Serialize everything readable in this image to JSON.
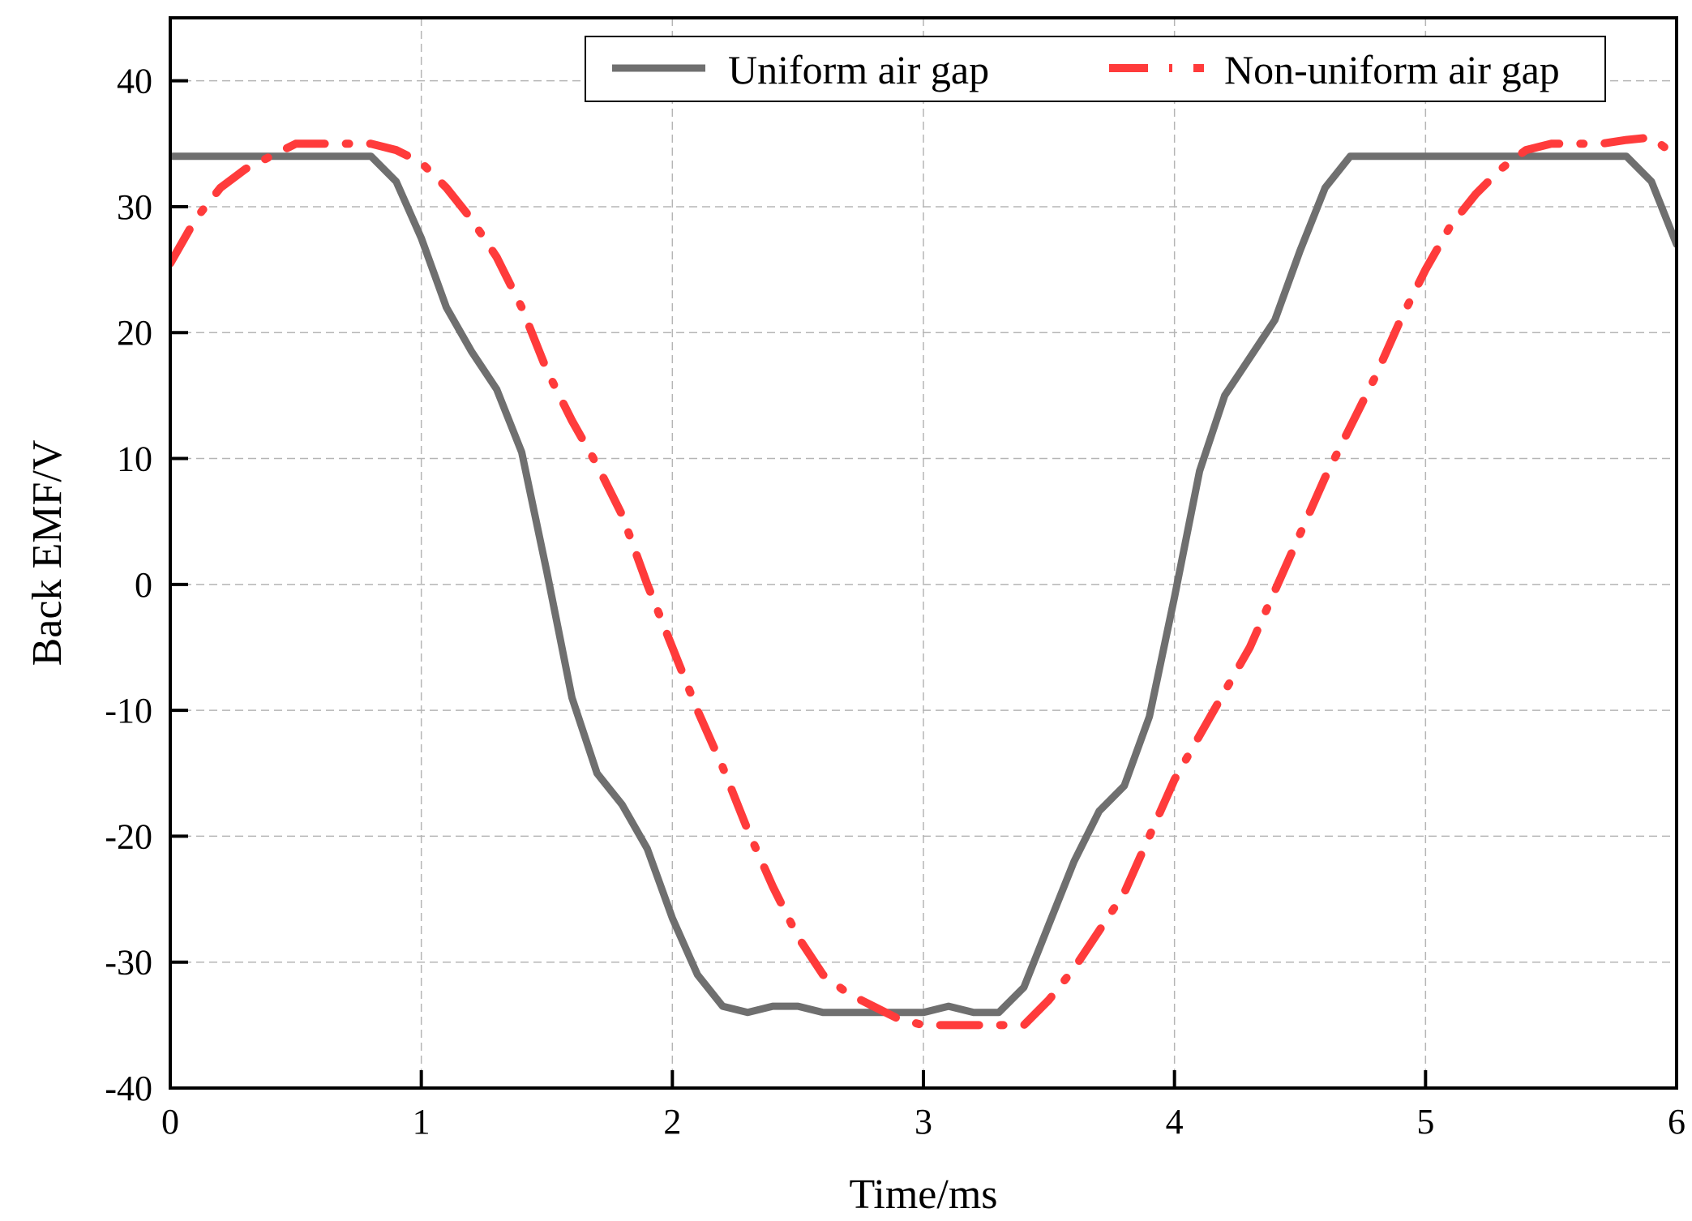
{
  "chart_data": {
    "type": "line",
    "title": "",
    "xlabel": "Time/ms",
    "ylabel": "Back EMF/V",
    "xlim": [
      0,
      6
    ],
    "ylim": [
      -40,
      45
    ],
    "xticks": [
      0,
      1,
      2,
      3,
      4,
      5,
      6
    ],
    "yticks": [
      -40,
      -30,
      -20,
      -10,
      0,
      10,
      20,
      30,
      40
    ],
    "xtick_labels": [
      "0",
      "1",
      "2",
      "3",
      "4",
      "5",
      "6"
    ],
    "ytick_labels": [
      "-40",
      "-30",
      "-20",
      "-10",
      "0",
      "10",
      "20",
      "30",
      "40"
    ],
    "grid": true,
    "legend_position": "top-right",
    "series": [
      {
        "name": "Uniform air gap",
        "color": "#6f6f6f",
        "style": "solid",
        "x": [
          0,
          0.1,
          0.2,
          0.3,
          0.4,
          0.5,
          0.6,
          0.7,
          0.8,
          0.9,
          1.0,
          1.1,
          1.2,
          1.3,
          1.4,
          1.5,
          1.6,
          1.7,
          1.8,
          1.9,
          2.0,
          2.1,
          2.2,
          2.3,
          2.4,
          2.5,
          2.6,
          2.7,
          2.8,
          2.9,
          3.0,
          3.1,
          3.2,
          3.3,
          3.4,
          3.5,
          3.6,
          3.7,
          3.8,
          3.9,
          4.0,
          4.1,
          4.2,
          4.3,
          4.4,
          4.5,
          4.6,
          4.7,
          4.8,
          4.9,
          5.0,
          5.1,
          5.2,
          5.3,
          5.4,
          5.5,
          5.6,
          5.7,
          5.8,
          5.9,
          6.0
        ],
        "y": [
          34,
          34,
          34,
          34,
          34,
          34,
          34,
          34,
          34,
          32,
          27.5,
          22,
          18.5,
          15.5,
          10.5,
          1,
          -9,
          -15,
          -17.5,
          -21,
          -26.5,
          -31,
          -33.5,
          -34,
          -33.5,
          -33.5,
          -34,
          -34,
          -34,
          -34,
          -34,
          -33.5,
          -34,
          -34,
          -32,
          -27,
          -22,
          -18,
          -16,
          -10.5,
          -1,
          9,
          15,
          18,
          21,
          26.5,
          31.5,
          34,
          34,
          34,
          34,
          34,
          34,
          34,
          34,
          34,
          34,
          34,
          34,
          32,
          27
        ]
      },
      {
        "name": "Non-uniform air gap",
        "color": "#ff3b3b",
        "style": "dash-dot",
        "x": [
          0,
          0.1,
          0.2,
          0.3,
          0.4,
          0.5,
          0.6,
          0.7,
          0.8,
          0.9,
          1.0,
          1.1,
          1.2,
          1.3,
          1.4,
          1.5,
          1.6,
          1.7,
          1.8,
          1.9,
          2.0,
          2.1,
          2.2,
          2.3,
          2.4,
          2.5,
          2.6,
          2.7,
          2.8,
          2.9,
          3.0,
          3.1,
          3.2,
          3.3,
          3.4,
          3.5,
          3.6,
          3.7,
          3.8,
          3.9,
          4.0,
          4.1,
          4.2,
          4.3,
          4.4,
          4.5,
          4.6,
          4.7,
          4.8,
          4.9,
          5.0,
          5.1,
          5.2,
          5.3,
          5.4,
          5.5,
          5.6,
          5.7,
          5.8,
          5.9,
          6.0
        ],
        "y": [
          25.5,
          29,
          31.5,
          33,
          34,
          35,
          35,
          35,
          35,
          34.5,
          33.5,
          31.5,
          29,
          26,
          22,
          17,
          13,
          9.5,
          5.5,
          0,
          -5,
          -10,
          -14.5,
          -19.5,
          -24,
          -28,
          -31,
          -32.5,
          -33.5,
          -34.5,
          -35,
          -35,
          -35,
          -35,
          -35,
          -33,
          -30.5,
          -27.5,
          -24.5,
          -20,
          -15.5,
          -12,
          -8.5,
          -5,
          -0.5,
          4,
          8.5,
          12.5,
          16.5,
          21,
          25,
          28.5,
          31,
          33,
          34.5,
          35,
          35,
          35,
          35.3,
          35.5,
          34
        ]
      }
    ]
  }
}
